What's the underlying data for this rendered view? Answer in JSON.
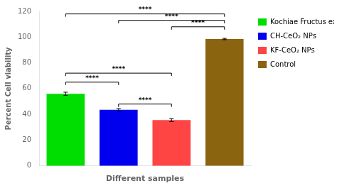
{
  "chart_data": {
    "type": "bar",
    "categories": [
      "Kochiae Fructus extract",
      "CH-CeO₂ NPs",
      "KF-CeO₂ NPs",
      "Control"
    ],
    "values": [
      56.0,
      43.5,
      35.5,
      98.5
    ],
    "errors": [
      1.2,
      1.0,
      1.2,
      0.5
    ],
    "colors": [
      "#00dd00",
      "#0000ee",
      "#ff4444",
      "#8B6410"
    ],
    "ylabel": "Percent Cell viability",
    "xlabel": "Different samples",
    "ylim": [
      0,
      120
    ],
    "yticks": [
      0,
      20,
      40,
      60,
      80,
      100,
      120
    ],
    "grid": false,
    "legend": "right",
    "tick_labels": "y",
    "annotations": [
      {
        "text": "****",
        "from": "Kochiae Fructus extract",
        "to": "CH-CeO₂ NPs",
        "y": 65
      },
      {
        "text": "****",
        "from": "Kochiae Fructus extract",
        "to": "KF-CeO₂ NPs",
        "y": 72
      },
      {
        "text": "****",
        "from": "CH-CeO₂ NPs",
        "to": "KF-CeO₂ NPs",
        "y": 48
      },
      {
        "text": "****",
        "from": "Kochiae Fructus extract",
        "to": "Control",
        "y": 118
      },
      {
        "text": "****",
        "from": "CH-CeO₂ NPs",
        "to": "Control",
        "y": 113
      },
      {
        "text": "****",
        "from": "KF-CeO₂ NPs",
        "to": "Control",
        "y": 108
      }
    ]
  }
}
